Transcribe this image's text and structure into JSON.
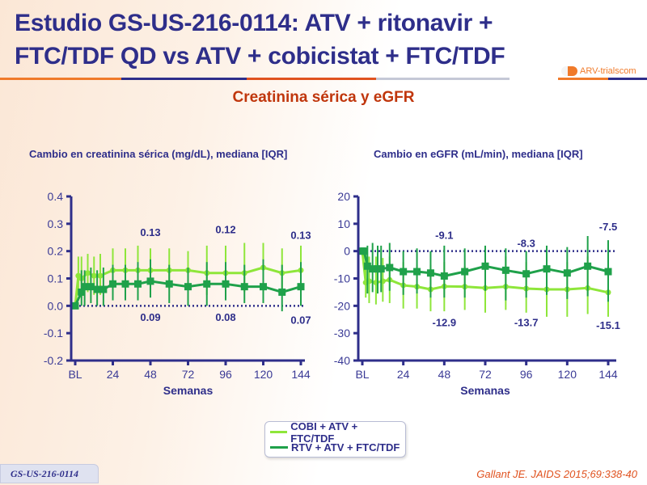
{
  "header": {
    "title_line1": "Estudio GS-US-216-0114: ATV + ritonavir +",
    "title_line2": "FTC/TDF QD vs ATV + cobicistat + FTC/TDF",
    "logo_text": "ARV-trials",
    "logo_suffix": "com"
  },
  "subtitle": "Creatinina sérica y eGFR",
  "legend": {
    "items": [
      {
        "label": "COBI + ATV + FTC/TDF",
        "color": "#8ee63a"
      },
      {
        "label": "RTV + ATV + FTC/TDF",
        "color": "#1fa14a"
      }
    ]
  },
  "footer": {
    "study_badge": "GS-US-216-0114",
    "citation": "Gallant JE. JAIDS 2015;69:338-40"
  },
  "chart_data": [
    {
      "type": "line",
      "title": "Cambio en creatinina sérica (mg/dL), mediana [IQR]",
      "xlabel": "Semanas",
      "ylabel": "",
      "xlim": [
        0,
        144
      ],
      "ylim": [
        -0.2,
        0.4
      ],
      "x_ticks": [
        0,
        24,
        48,
        72,
        96,
        120,
        144
      ],
      "x_tick_labels": [
        "BL",
        "24",
        "48",
        "72",
        "96",
        "120",
        "144"
      ],
      "y_ticks": [
        -0.2,
        -0.1,
        0.0,
        0.1,
        0.2,
        0.3,
        0.4
      ],
      "y_tick_labels": [
        "-0.2",
        "-0.1",
        "0.0",
        "0.1",
        "0.2",
        "0.3",
        "0.4"
      ],
      "reference_line": 0,
      "grid": false,
      "series": [
        {
          "name": "COBI + ATV + FTC/TDF",
          "color": "#8ee63a",
          "marker": "circle",
          "x": [
            0,
            2,
            4,
            8,
            12,
            16,
            24,
            32,
            40,
            48,
            60,
            72,
            84,
            96,
            108,
            120,
            132,
            144
          ],
          "values": [
            0.0,
            0.11,
            0.1,
            0.12,
            0.11,
            0.11,
            0.13,
            0.13,
            0.13,
            0.13,
            0.13,
            0.13,
            0.12,
            0.12,
            0.12,
            0.14,
            0.12,
            0.13
          ],
          "q1": [
            0.0,
            0.04,
            0.03,
            0.05,
            0.04,
            0.04,
            0.05,
            0.05,
            0.06,
            0.05,
            0.06,
            0.06,
            0.04,
            0.04,
            0.05,
            0.06,
            0.05,
            0.06
          ],
          "q3": [
            0.0,
            0.18,
            0.18,
            0.19,
            0.18,
            0.19,
            0.21,
            0.21,
            0.22,
            0.21,
            0.21,
            0.2,
            0.22,
            0.22,
            0.23,
            0.23,
            0.21,
            0.22
          ]
        },
        {
          "name": "RTV + ATV + FTC/TDF",
          "color": "#1fa14a",
          "marker": "square",
          "x": [
            0,
            4,
            6,
            10,
            14,
            18,
            24,
            32,
            40,
            48,
            60,
            72,
            84,
            96,
            108,
            120,
            132,
            144
          ],
          "values": [
            0.0,
            0.05,
            0.07,
            0.07,
            0.06,
            0.06,
            0.08,
            0.08,
            0.08,
            0.09,
            0.08,
            0.07,
            0.08,
            0.08,
            0.07,
            0.07,
            0.05,
            0.07
          ],
          "q1": [
            0.0,
            0.0,
            0.0,
            0.01,
            0.0,
            0.0,
            0.02,
            0.02,
            0.02,
            0.03,
            0.01,
            0.0,
            0.0,
            0.02,
            0.01,
            0.01,
            -0.02,
            0.0
          ],
          "q3": [
            0.0,
            0.13,
            0.13,
            0.14,
            0.13,
            0.14,
            0.15,
            0.15,
            0.16,
            0.17,
            0.15,
            0.14,
            0.16,
            0.16,
            0.15,
            0.17,
            0.15,
            0.16
          ]
        }
      ],
      "annotations": [
        {
          "text": "0.13",
          "x": 48,
          "y": 0.27
        },
        {
          "text": "0.12",
          "x": 96,
          "y": 0.28
        },
        {
          "text": "0.13",
          "x": 144,
          "y": 0.26
        },
        {
          "text": "0.09",
          "x": 48,
          "y": -0.04
        },
        {
          "text": "0.08",
          "x": 96,
          "y": -0.04
        },
        {
          "text": "0.07",
          "x": 144,
          "y": -0.05
        }
      ]
    },
    {
      "type": "line",
      "title": "Cambio en eGFR (mL/min), mediana [IQR]",
      "xlabel": "Semanas",
      "ylabel": "",
      "xlim": [
        0,
        144
      ],
      "ylim": [
        -40,
        20
      ],
      "x_ticks": [
        0,
        24,
        48,
        72,
        96,
        120,
        144
      ],
      "x_tick_labels": [
        "BL",
        "24",
        "48",
        "72",
        "96",
        "120",
        "144"
      ],
      "y_ticks": [
        -40,
        -30,
        -20,
        -10,
        0,
        10,
        20
      ],
      "y_tick_labels": [
        "-40",
        "-30",
        "-20",
        "-10",
        "0",
        "10",
        "20"
      ],
      "reference_line": 0,
      "grid": false,
      "series": [
        {
          "name": "COBI + ATV + FTC/TDF",
          "color": "#8ee63a",
          "marker": "circle",
          "x": [
            0,
            2,
            4,
            8,
            12,
            16,
            24,
            32,
            40,
            48,
            60,
            72,
            84,
            96,
            108,
            120,
            132,
            144
          ],
          "values": [
            0,
            -11.5,
            -11,
            -11.5,
            -11,
            -10.5,
            -12.5,
            -13,
            -14,
            -12.9,
            -13,
            -13.5,
            -13,
            -13.7,
            -14,
            -14,
            -13.5,
            -15.1
          ],
          "q1": [
            0,
            -17,
            -19,
            -19.5,
            -18.5,
            -19,
            -21,
            -21,
            -22,
            -22,
            -21.5,
            -22.5,
            -21.5,
            -22.5,
            -24,
            -24,
            -23,
            -24
          ],
          "q3": [
            0,
            -1,
            -2,
            -2,
            -2.5,
            -2,
            -4,
            -5,
            -5,
            -4,
            -5.5,
            -4.5,
            -2,
            -4,
            -5.5,
            -4,
            -2,
            -5
          ]
        },
        {
          "name": "RTV + ATV + FTC/TDF",
          "color": "#1fa14a",
          "marker": "square",
          "x": [
            0,
            1,
            3,
            6,
            9,
            11,
            16,
            24,
            32,
            40,
            48,
            60,
            72,
            84,
            96,
            108,
            120,
            132,
            144
          ],
          "values": [
            0,
            0,
            -5.5,
            -6.5,
            -6.5,
            -6.5,
            -6,
            -7.5,
            -7.5,
            -8,
            -9.1,
            -7.5,
            -5.5,
            -7,
            -8.3,
            -6.5,
            -8,
            -5.5,
            -7.5
          ],
          "q1": [
            0,
            0,
            -15.5,
            -15,
            -15.5,
            -15,
            -14.5,
            -16,
            -15.5,
            -17,
            -17,
            -17,
            -14.5,
            -18,
            -17,
            -16,
            -17.5,
            -16.5,
            -18.5
          ],
          "q3": [
            0,
            0,
            2,
            3,
            2,
            2,
            3,
            0,
            1,
            0,
            2,
            1,
            2,
            1,
            0,
            2,
            1.5,
            5.5,
            4
          ]
        }
      ],
      "annotations": [
        {
          "text": "-9.1",
          "x": 48,
          "y": 6
        },
        {
          "text": "-8.3",
          "x": 96,
          "y": 3
        },
        {
          "text": "-7.5",
          "x": 144,
          "y": 9
        },
        {
          "text": "-12.9",
          "x": 48,
          "y": -26
        },
        {
          "text": "-13.7",
          "x": 96,
          "y": -26
        },
        {
          "text": "-15.1",
          "x": 144,
          "y": -27
        }
      ]
    }
  ]
}
